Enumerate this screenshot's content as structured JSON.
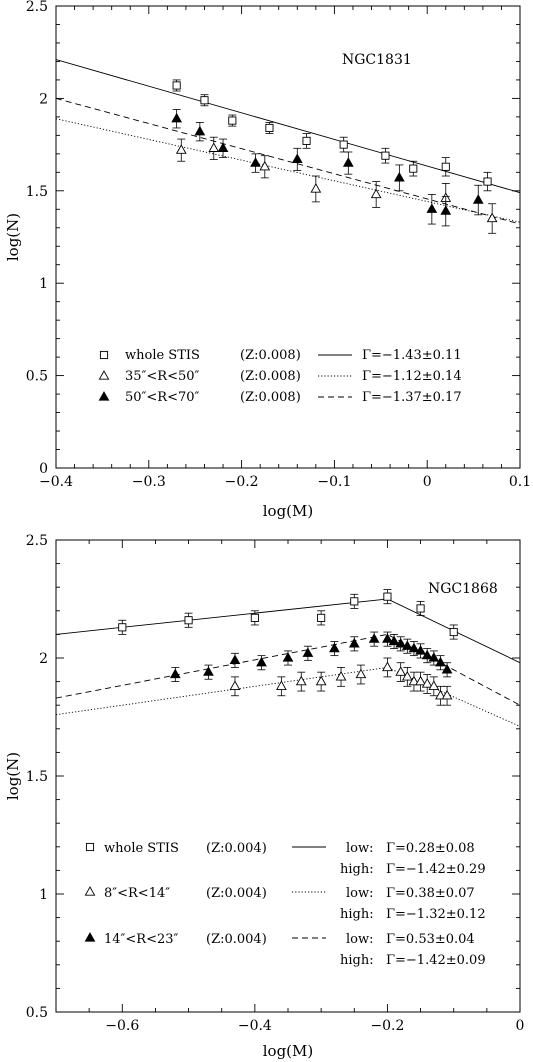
{
  "chart_data": [
    {
      "type": "scatter",
      "title": "NGC1831",
      "xlabel": "log(M)",
      "ylabel": "log(N)",
      "xlim": [
        -0.4,
        0.1
      ],
      "ylim": [
        0,
        2.5
      ],
      "xticks": [
        "-0.4",
        "-0.3",
        "-0.2",
        "-0.1",
        "0",
        "0.1"
      ],
      "yticks": [
        "0",
        "0.5",
        "1",
        "1.5",
        "2",
        "2.5"
      ],
      "legend": "bottom-left",
      "series": [
        {
          "name": "whole STIS",
          "zlabel": "(Z:0.008)",
          "marker": "square",
          "x": [
            -0.27,
            -0.24,
            -0.21,
            -0.17,
            -0.13,
            -0.09,
            -0.045,
            -0.015,
            0.02,
            0.065
          ],
          "y": [
            2.07,
            1.99,
            1.88,
            1.84,
            1.77,
            1.75,
            1.69,
            1.62,
            1.63,
            1.55
          ],
          "err": [
            0.03,
            0.03,
            0.03,
            0.03,
            0.04,
            0.04,
            0.04,
            0.04,
            0.05,
            0.05
          ],
          "fit_label": "Γ=−1.43±0.11",
          "fit_style": "solid",
          "fit_line": [
            [
              -0.4,
              2.21
            ],
            [
              0.1,
              1.49
            ]
          ]
        },
        {
          "name": "35″<R<50″",
          "zlabel": "(Z:0.008)",
          "marker": "triangle-open",
          "x": [
            -0.265,
            -0.23,
            -0.175,
            -0.12,
            -0.055,
            0.02,
            0.07
          ],
          "y": [
            1.72,
            1.73,
            1.63,
            1.51,
            1.48,
            1.46,
            1.35
          ],
          "err": [
            0.06,
            0.06,
            0.06,
            0.07,
            0.07,
            0.08,
            0.08
          ],
          "fit_label": "Γ=−1.12±0.14",
          "fit_style": "dotted",
          "fit_line": [
            [
              -0.4,
              1.89
            ],
            [
              0.1,
              1.33
            ]
          ]
        },
        {
          "name": "50″<R<70″",
          "zlabel": "(Z:0.008)",
          "marker": "triangle-filled",
          "x": [
            -0.27,
            -0.245,
            -0.22,
            -0.185,
            -0.14,
            -0.085,
            -0.03,
            0.005,
            0.02,
            0.055
          ],
          "y": [
            1.89,
            1.82,
            1.73,
            1.65,
            1.67,
            1.65,
            1.57,
            1.4,
            1.39,
            1.45
          ],
          "err": [
            0.05,
            0.05,
            0.05,
            0.05,
            0.06,
            0.06,
            0.07,
            0.08,
            0.08,
            0.08
          ],
          "fit_label": "Γ=−1.37±0.17",
          "fit_style": "dashed",
          "fit_line": [
            [
              -0.4,
              2.0
            ],
            [
              0.1,
              1.32
            ]
          ]
        }
      ]
    },
    {
      "type": "scatter",
      "title": "NGC1868",
      "xlabel": "log(M)",
      "ylabel": "log(N)",
      "xlim": [
        -0.7,
        0
      ],
      "ylim": [
        0.5,
        2.5
      ],
      "xticks": [
        "-0.6",
        "-0.4",
        "-0.2",
        "0"
      ],
      "yticks": [
        "0.5",
        "1",
        "1.5",
        "2",
        "2.5"
      ],
      "legend": "bottom-left",
      "series": [
        {
          "name": "whole STIS",
          "zlabel": "(Z:0.004)",
          "marker": "square",
          "x": [
            -0.6,
            -0.5,
            -0.4,
            -0.3,
            -0.25,
            -0.2,
            -0.15,
            -0.1
          ],
          "y": [
            2.13,
            2.16,
            2.17,
            2.17,
            2.24,
            2.26,
            2.21,
            2.11
          ],
          "err": [
            0.03,
            0.03,
            0.03,
            0.03,
            0.03,
            0.03,
            0.03,
            0.03
          ],
          "fit_label_low": "Γ=0.28±0.08",
          "fit_label_high": "Γ=−1.42±0.29",
          "fit_style": "solid",
          "fit_line": [
            [
              -0.7,
              2.1
            ],
            [
              -0.2,
              2.25
            ],
            [
              0,
              1.98
            ]
          ]
        },
        {
          "name": "8″<R<14″",
          "zlabel": "(Z:0.004)",
          "marker": "triangle-open",
          "x": [
            -0.43,
            -0.36,
            -0.33,
            -0.3,
            -0.27,
            -0.24,
            -0.2,
            -0.18,
            -0.17,
            -0.16,
            -0.15,
            -0.14,
            -0.13,
            -0.12,
            -0.11
          ],
          "y": [
            1.88,
            1.88,
            1.9,
            1.9,
            1.92,
            1.93,
            1.96,
            1.94,
            1.92,
            1.9,
            1.9,
            1.89,
            1.88,
            1.84,
            1.84
          ],
          "err": [
            0.04,
            0.04,
            0.04,
            0.04,
            0.04,
            0.04,
            0.04,
            0.04,
            0.04,
            0.04,
            0.04,
            0.04,
            0.04,
            0.04,
            0.04
          ],
          "fit_label_low": "Γ=0.38±0.07",
          "fit_label_high": "Γ=−1.32±0.12",
          "fit_style": "dotted",
          "fit_line": [
            [
              -0.7,
              1.76
            ],
            [
              -0.2,
              1.96
            ],
            [
              0,
              1.71
            ]
          ]
        },
        {
          "name": "14″<R<23″",
          "zlabel": "(Z:0.004)",
          "marker": "triangle-filled",
          "x": [
            -0.52,
            -0.47,
            -0.43,
            -0.39,
            -0.35,
            -0.32,
            -0.28,
            -0.25,
            -0.22,
            -0.2,
            -0.19,
            -0.18,
            -0.17,
            -0.16,
            -0.15,
            -0.14,
            -0.13,
            -0.12,
            -0.11
          ],
          "y": [
            1.93,
            1.94,
            1.99,
            1.98,
            2.0,
            2.02,
            2.04,
            2.06,
            2.08,
            2.08,
            2.07,
            2.06,
            2.05,
            2.04,
            2.03,
            2.01,
            2.0,
            1.98,
            1.95
          ],
          "err": [
            0.03,
            0.03,
            0.03,
            0.03,
            0.03,
            0.03,
            0.03,
            0.03,
            0.03,
            0.03,
            0.03,
            0.03,
            0.03,
            0.03,
            0.03,
            0.03,
            0.03,
            0.03,
            0.03
          ],
          "fit_label_low": "Γ=0.53±0.04",
          "fit_label_high": "Γ=−1.42±0.09",
          "fit_style": "dashed",
          "fit_line": [
            [
              -0.7,
              1.83
            ],
            [
              -0.2,
              2.1
            ],
            [
              0,
              1.8
            ]
          ]
        }
      ],
      "legend_words": {
        "low": "low:",
        "high": "high:"
      }
    }
  ]
}
